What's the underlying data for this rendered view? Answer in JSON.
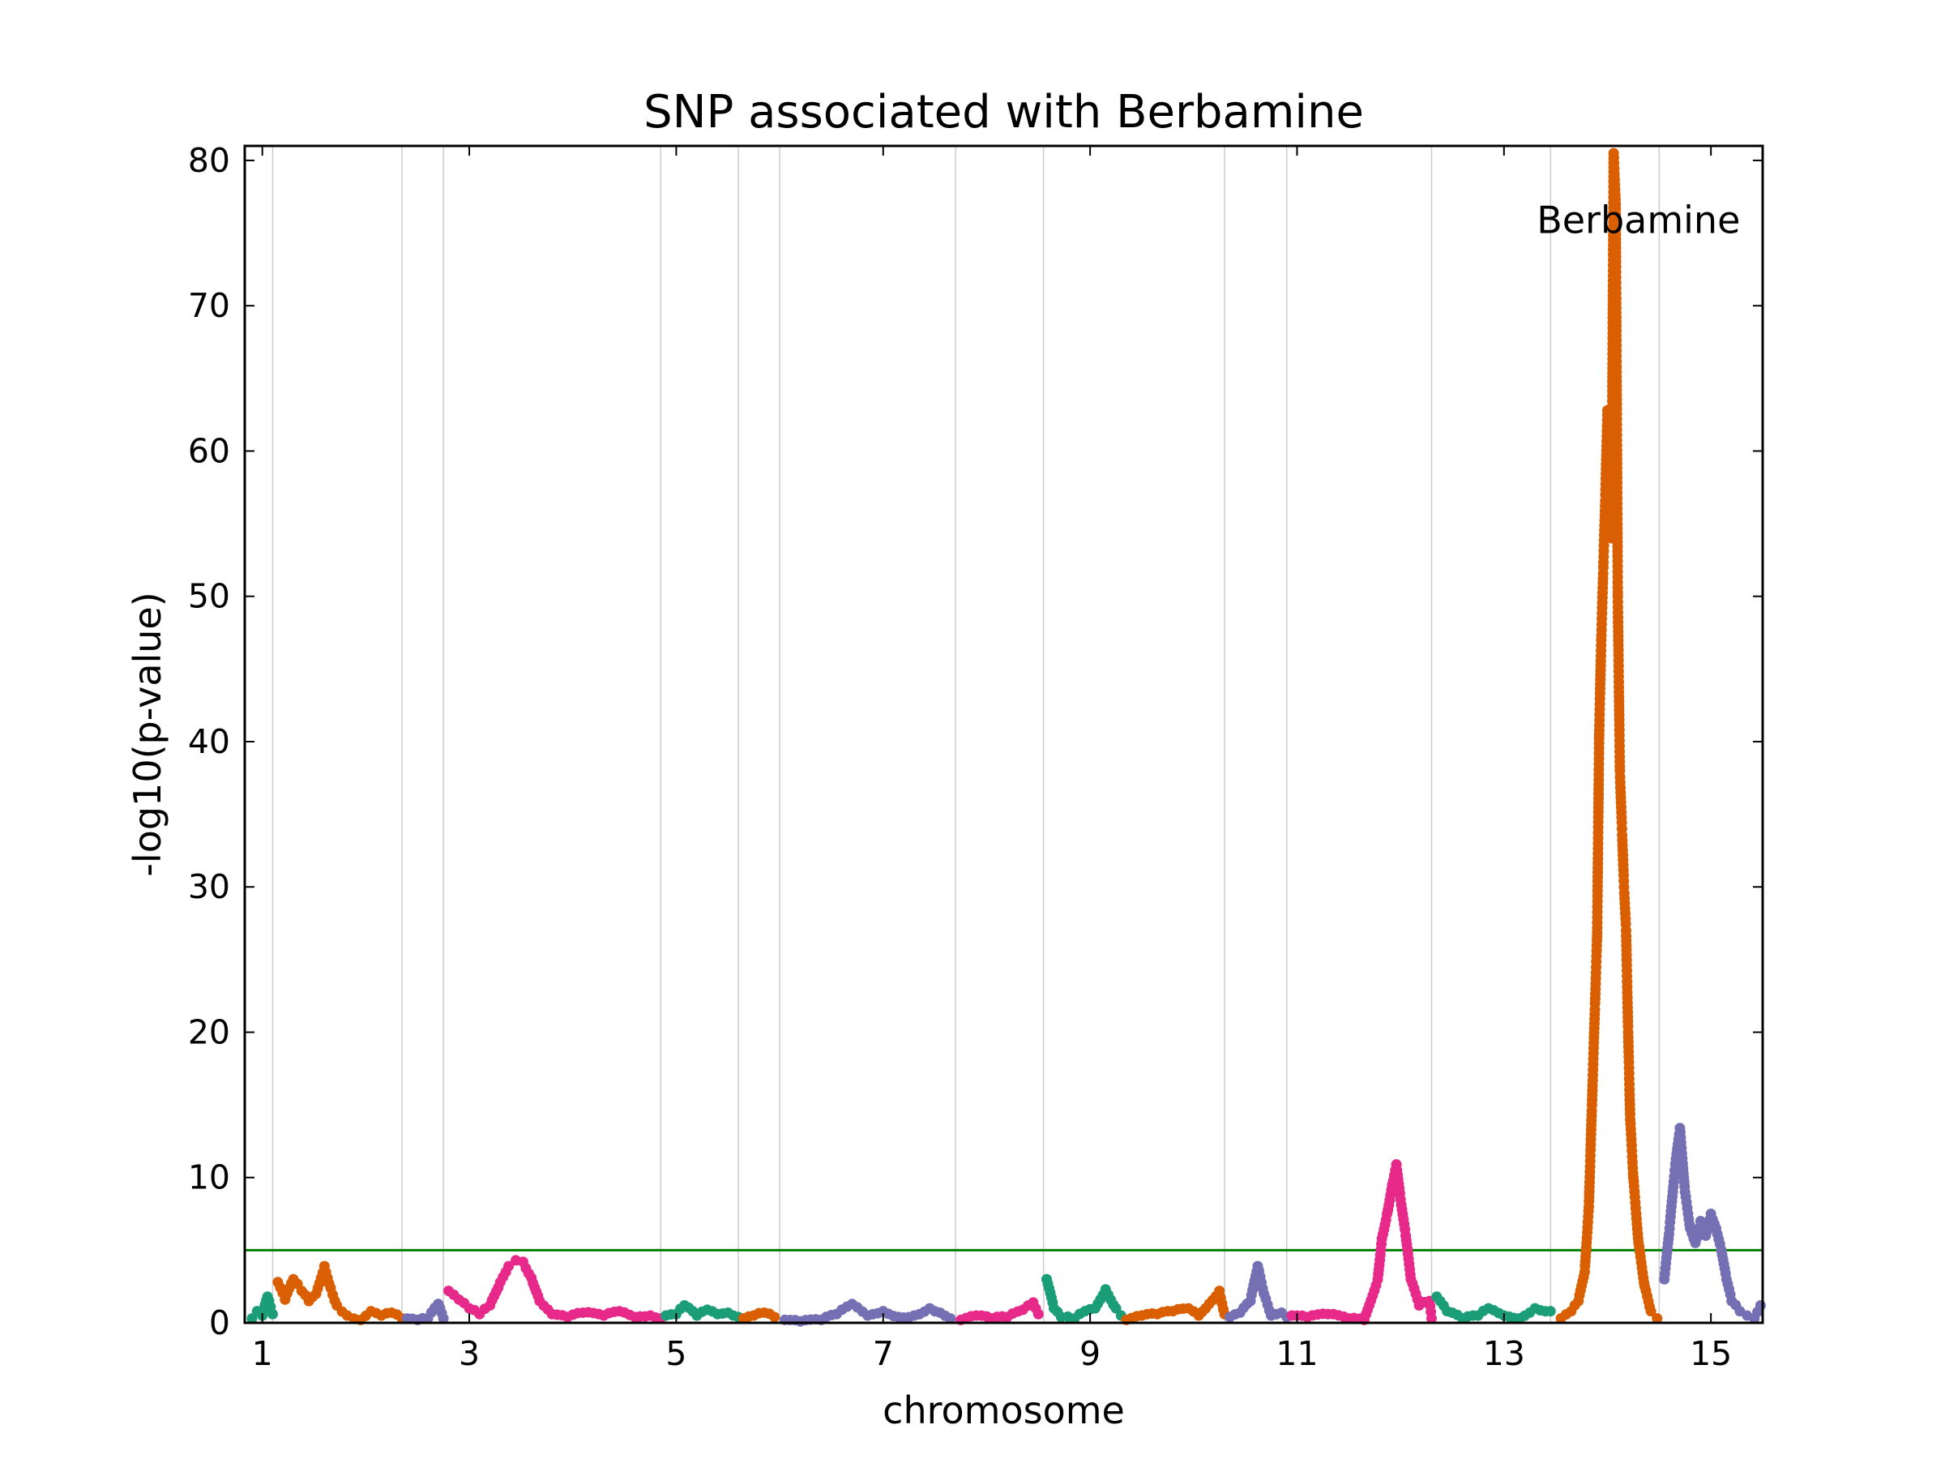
{
  "chart_data": {
    "type": "scatter",
    "title": "SNP associated with Berbamine",
    "xlabel": "chromosome",
    "ylabel": "-log10(p-value)",
    "ylim": [
      0,
      81
    ],
    "xlim": [
      0.83,
      15.5
    ],
    "x_ticks": [
      1,
      3,
      5,
      7,
      9,
      11,
      13,
      15
    ],
    "x_tick_labels": [
      "1",
      "3",
      "5",
      "7",
      "9",
      "11",
      "13",
      "15"
    ],
    "y_ticks": [
      0,
      10,
      20,
      30,
      40,
      50,
      60,
      70,
      80
    ],
    "y_tick_labels": [
      "0",
      "10",
      "20",
      "30",
      "40",
      "50",
      "60",
      "70",
      "80"
    ],
    "grid": "vertical chromosome boundaries",
    "chromosome_boundaries": [
      1.1,
      2.35,
      2.75,
      4.85,
      5.6,
      6.0,
      7.7,
      8.55,
      10.3,
      10.9,
      12.3,
      13.45,
      14.5
    ],
    "threshold": {
      "value": 5,
      "color": "#008000"
    },
    "colors": [
      "#1b9e77",
      "#d95f02",
      "#7570b3",
      "#e7298a"
    ],
    "annotations": [
      {
        "text": "Berbamine",
        "x": 14.3,
        "y": 75
      }
    ],
    "series": [
      {
        "segment": 1,
        "color": "#1b9e77",
        "points": [
          [
            0.9,
            0.3
          ],
          [
            0.95,
            0.8
          ],
          [
            1.0,
            0.5
          ],
          [
            1.05,
            1.8
          ],
          [
            1.08,
            1.1
          ],
          [
            1.1,
            0.6
          ]
        ]
      },
      {
        "segment": 2,
        "color": "#d95f02",
        "points": [
          [
            1.15,
            2.8
          ],
          [
            1.22,
            1.6
          ],
          [
            1.3,
            3.0
          ],
          [
            1.38,
            2.2
          ],
          [
            1.45,
            1.5
          ],
          [
            1.52,
            2.0
          ],
          [
            1.6,
            3.9
          ],
          [
            1.66,
            2.4
          ],
          [
            1.72,
            1.2
          ],
          [
            1.82,
            0.5
          ],
          [
            1.95,
            0.2
          ],
          [
            2.05,
            0.8
          ],
          [
            2.15,
            0.5
          ],
          [
            2.25,
            0.7
          ],
          [
            2.35,
            0.3
          ]
        ]
      },
      {
        "segment": 3,
        "color": "#7570b3",
        "points": [
          [
            2.4,
            0.3
          ],
          [
            2.5,
            0.2
          ],
          [
            2.6,
            0.3
          ],
          [
            2.7,
            1.3
          ],
          [
            2.75,
            0.3
          ]
        ]
      },
      {
        "segment": 4,
        "color": "#e7298a",
        "points": [
          [
            2.8,
            2.2
          ],
          [
            2.9,
            1.6
          ],
          [
            3.0,
            1.0
          ],
          [
            3.1,
            0.6
          ],
          [
            3.2,
            1.2
          ],
          [
            3.3,
            2.8
          ],
          [
            3.38,
            3.9
          ],
          [
            3.45,
            4.3
          ],
          [
            3.52,
            4.2
          ],
          [
            3.6,
            3.1
          ],
          [
            3.68,
            1.5
          ],
          [
            3.8,
            0.6
          ],
          [
            3.95,
            0.4
          ],
          [
            4.1,
            0.7
          ],
          [
            4.3,
            0.5
          ],
          [
            4.45,
            0.8
          ],
          [
            4.6,
            0.4
          ],
          [
            4.75,
            0.5
          ],
          [
            4.85,
            0.3
          ]
        ]
      },
      {
        "segment": 5,
        "color": "#1b9e77",
        "points": [
          [
            4.9,
            0.5
          ],
          [
            5.0,
            0.6
          ],
          [
            5.08,
            1.2
          ],
          [
            5.2,
            0.5
          ],
          [
            5.3,
            0.9
          ],
          [
            5.4,
            0.6
          ],
          [
            5.5,
            0.7
          ],
          [
            5.6,
            0.4
          ]
        ]
      },
      {
        "segment": 6,
        "color": "#d95f02",
        "points": [
          [
            5.65,
            0.3
          ],
          [
            5.75,
            0.5
          ],
          [
            5.85,
            0.7
          ],
          [
            5.95,
            0.4
          ]
        ]
      },
      {
        "segment": 7,
        "color": "#7570b3",
        "points": [
          [
            6.05,
            0.2
          ],
          [
            6.2,
            0.1
          ],
          [
            6.4,
            0.2
          ],
          [
            6.55,
            0.6
          ],
          [
            6.7,
            1.3
          ],
          [
            6.85,
            0.5
          ],
          [
            7.0,
            0.8
          ],
          [
            7.15,
            0.4
          ],
          [
            7.3,
            0.5
          ],
          [
            7.45,
            1.0
          ],
          [
            7.55,
            0.7
          ],
          [
            7.65,
            0.3
          ]
        ]
      },
      {
        "segment": 8,
        "color": "#e7298a",
        "points": [
          [
            7.75,
            0.2
          ],
          [
            7.9,
            0.5
          ],
          [
            8.05,
            0.3
          ],
          [
            8.2,
            0.4
          ],
          [
            8.35,
            0.9
          ],
          [
            8.45,
            1.4
          ],
          [
            8.5,
            0.6
          ]
        ]
      },
      {
        "segment": 9,
        "color": "#1b9e77",
        "points": [
          [
            8.58,
            3.0
          ],
          [
            8.65,
            1.0
          ],
          [
            8.72,
            0.4
          ],
          [
            8.85,
            0.3
          ],
          [
            8.95,
            0.8
          ],
          [
            9.05,
            1.0
          ],
          [
            9.15,
            2.3
          ],
          [
            9.25,
            1.0
          ],
          [
            9.3,
            0.5
          ]
        ]
      },
      {
        "segment": 10,
        "color": "#d95f02",
        "points": [
          [
            9.35,
            0.2
          ],
          [
            9.5,
            0.5
          ],
          [
            9.65,
            0.6
          ],
          [
            9.8,
            0.8
          ],
          [
            9.95,
            1.0
          ],
          [
            10.05,
            0.5
          ],
          [
            10.15,
            1.3
          ],
          [
            10.25,
            2.2
          ],
          [
            10.3,
            0.6
          ]
        ]
      },
      {
        "segment": 11,
        "color": "#7570b3",
        "points": [
          [
            10.35,
            0.4
          ],
          [
            10.45,
            0.7
          ],
          [
            10.55,
            1.5
          ],
          [
            10.62,
            3.9
          ],
          [
            10.68,
            2.0
          ],
          [
            10.75,
            0.5
          ],
          [
            10.85,
            0.7
          ],
          [
            10.9,
            0.4
          ]
        ]
      },
      {
        "segment": 12,
        "color": "#e7298a",
        "points": [
          [
            10.95,
            0.5
          ],
          [
            11.1,
            0.4
          ],
          [
            11.3,
            0.6
          ],
          [
            11.5,
            0.3
          ],
          [
            11.65,
            0.2
          ],
          [
            11.78,
            3.0
          ],
          [
            11.82,
            5.8
          ],
          [
            11.87,
            7.5
          ],
          [
            11.92,
            9.5
          ],
          [
            11.96,
            10.9
          ],
          [
            12.0,
            8.5
          ],
          [
            12.05,
            6.0
          ],
          [
            12.1,
            3.0
          ],
          [
            12.18,
            1.2
          ],
          [
            12.28,
            1.5
          ],
          [
            12.3,
            0.3
          ]
        ]
      },
      {
        "segment": 13,
        "color": "#1b9e77",
        "points": [
          [
            12.35,
            1.8
          ],
          [
            12.45,
            0.8
          ],
          [
            12.6,
            0.3
          ],
          [
            12.75,
            0.5
          ],
          [
            12.85,
            1.0
          ],
          [
            13.0,
            0.5
          ],
          [
            13.15,
            0.3
          ],
          [
            13.3,
            1.0
          ],
          [
            13.45,
            0.8
          ]
        ]
      },
      {
        "segment": 14,
        "color": "#d95f02",
        "points": [
          [
            13.55,
            0.3
          ],
          [
            13.65,
            0.8
          ],
          [
            13.72,
            1.5
          ],
          [
            13.78,
            3.5
          ],
          [
            13.82,
            8.0
          ],
          [
            13.85,
            15.0
          ],
          [
            13.88,
            22.0
          ],
          [
            13.9,
            26.6
          ],
          [
            13.92,
            40.5
          ],
          [
            13.94,
            47.0
          ],
          [
            13.96,
            52.0
          ],
          [
            13.98,
            57.0
          ],
          [
            14.0,
            62.8
          ],
          [
            14.02,
            59.5
          ],
          [
            14.04,
            54.0
          ],
          [
            14.06,
            80.5
          ],
          [
            14.08,
            77.0
          ],
          [
            14.1,
            50.0
          ],
          [
            14.12,
            38.0
          ],
          [
            14.14,
            34.0
          ],
          [
            14.16,
            30.0
          ],
          [
            14.18,
            27.0
          ],
          [
            14.2,
            20.0
          ],
          [
            14.22,
            14.0
          ],
          [
            14.25,
            10.0
          ],
          [
            14.3,
            5.5
          ],
          [
            14.36,
            2.5
          ],
          [
            14.42,
            0.8
          ],
          [
            14.48,
            0.3
          ]
        ]
      },
      {
        "segment": 15,
        "color": "#7570b3",
        "points": [
          [
            14.55,
            3.0
          ],
          [
            14.6,
            6.5
          ],
          [
            14.65,
            10.5
          ],
          [
            14.7,
            13.4
          ],
          [
            14.75,
            9.0
          ],
          [
            14.8,
            6.5
          ],
          [
            14.85,
            5.5
          ],
          [
            14.9,
            7.0
          ],
          [
            14.95,
            6.0
          ],
          [
            15.0,
            7.5
          ],
          [
            15.05,
            6.5
          ],
          [
            15.1,
            5.0
          ],
          [
            15.15,
            3.0
          ],
          [
            15.2,
            1.5
          ],
          [
            15.28,
            0.8
          ],
          [
            15.35,
            0.5
          ],
          [
            15.42,
            0.3
          ],
          [
            15.48,
            1.2
          ]
        ]
      }
    ]
  }
}
